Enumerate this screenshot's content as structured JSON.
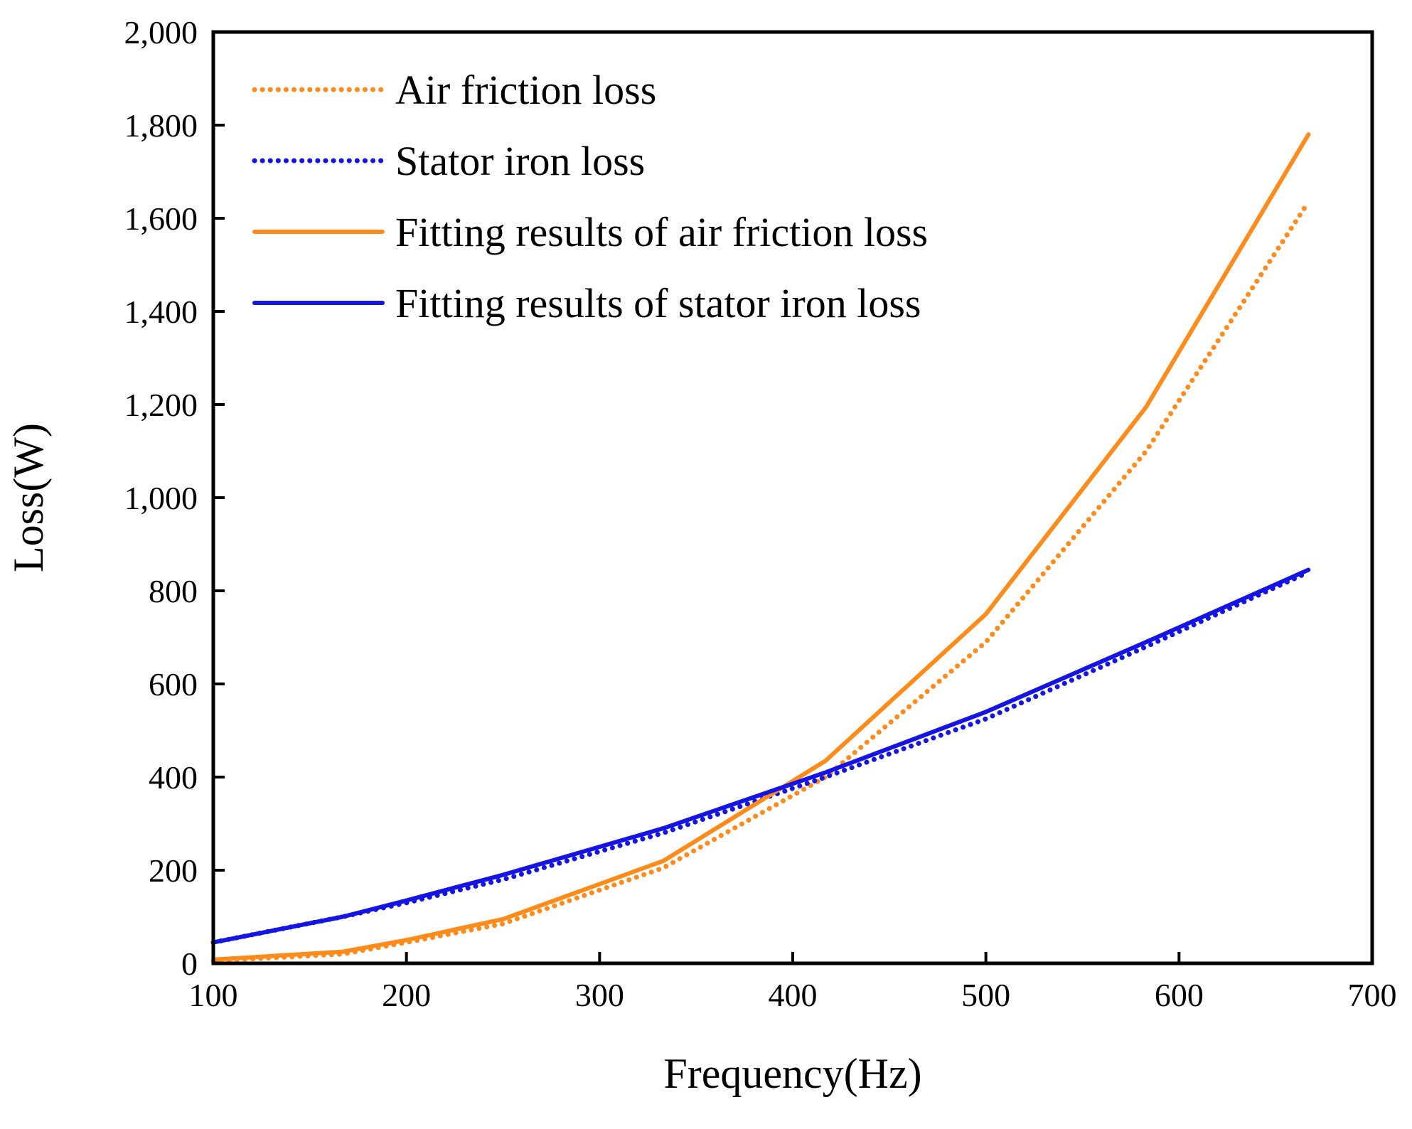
{
  "chart_data": {
    "type": "line",
    "title": "",
    "xlabel": "Frequency(Hz)",
    "ylabel": "Loss(W)",
    "xlim": [
      100,
      700
    ],
    "ylim": [
      0,
      2000
    ],
    "x_ticks": [
      "100",
      "200",
      "300",
      "400",
      "500",
      "600",
      "700"
    ],
    "y_ticks": [
      "0",
      "200",
      "400",
      "600",
      "800",
      "1,000",
      "1,200",
      "1,400",
      "1,600",
      "1,800",
      "2,000"
    ],
    "x_tick_values": [
      100,
      200,
      300,
      400,
      500,
      600,
      700
    ],
    "y_tick_values": [
      0,
      200,
      400,
      600,
      800,
      1000,
      1200,
      1400,
      1600,
      1800,
      2000
    ],
    "legend_position": "top-left",
    "colors": {
      "orange": "#ff8c1a",
      "blue": "#1414e6",
      "axis": "#000000"
    },
    "series": [
      {
        "name": "Air friction loss",
        "color": "#ff8c1a",
        "style": "dotted",
        "x": [
          100,
          167,
          200,
          250,
          333,
          417,
          500,
          583,
          667
        ],
        "y": [
          5,
          20,
          45,
          85,
          205,
          400,
          690,
          1100,
          1635
        ]
      },
      {
        "name": "Stator iron loss",
        "color": "#1414e6",
        "style": "dotted",
        "x": [
          100,
          167,
          200,
          250,
          333,
          417,
          500,
          583,
          667
        ],
        "y": [
          45,
          100,
          130,
          180,
          280,
          400,
          525,
          680,
          840
        ]
      },
      {
        "name": "Fitting results of air friction loss",
        "color": "#ff8c1a",
        "style": "solid",
        "x": [
          100,
          167,
          200,
          250,
          333,
          417,
          500,
          583,
          667
        ],
        "y": [
          8,
          25,
          50,
          95,
          220,
          435,
          750,
          1195,
          1780
        ]
      },
      {
        "name": "Fitting results of stator iron loss",
        "color": "#1414e6",
        "style": "solid",
        "x": [
          100,
          167,
          200,
          250,
          333,
          417,
          500,
          583,
          667
        ],
        "y": [
          45,
          100,
          135,
          190,
          290,
          410,
          540,
          690,
          845
        ]
      }
    ]
  }
}
